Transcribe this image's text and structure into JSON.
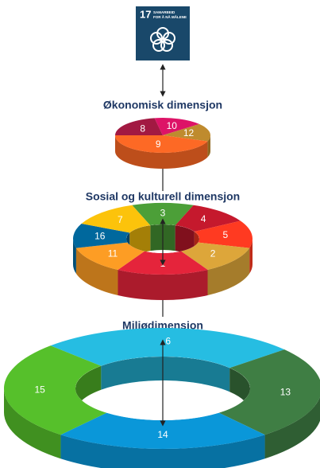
{
  "icon": {
    "number": "17",
    "text": [
      "SAMARBEID",
      "FOR Å NÅ MÅLENE"
    ]
  },
  "layers": [
    {
      "title": "Økonomisk dimensjon",
      "goals": [
        {
          "label": 8,
          "color": "#A21942"
        },
        {
          "label": 10,
          "color": "#DD1367"
        },
        {
          "label": 12,
          "color": "#BF8B2E"
        },
        {
          "label": 9,
          "color": "#FD6925"
        }
      ]
    },
    {
      "title": "Sosial og kulturell dimensjon",
      "goals": [
        {
          "label": 3,
          "color": "#4C9F38"
        },
        {
          "label": 4,
          "color": "#C5192D"
        },
        {
          "label": 5,
          "color": "#FF3A21"
        },
        {
          "label": 2,
          "color": "#DDA63A"
        },
        {
          "label": 1,
          "color": "#E5243B"
        },
        {
          "label": 11,
          "color": "#FD9D24"
        },
        {
          "label": 16,
          "color": "#00689D"
        },
        {
          "label": 7,
          "color": "#FCC30B"
        }
      ]
    },
    {
      "title": "Miljødimensjon",
      "goals": [
        {
          "label": 6,
          "color": "#26BDE2"
        },
        {
          "label": 13,
          "color": "#3F7E44"
        },
        {
          "label": 14,
          "color": "#0A97D9"
        },
        {
          "label": 15,
          "color": "#56C02B"
        }
      ]
    }
  ]
}
